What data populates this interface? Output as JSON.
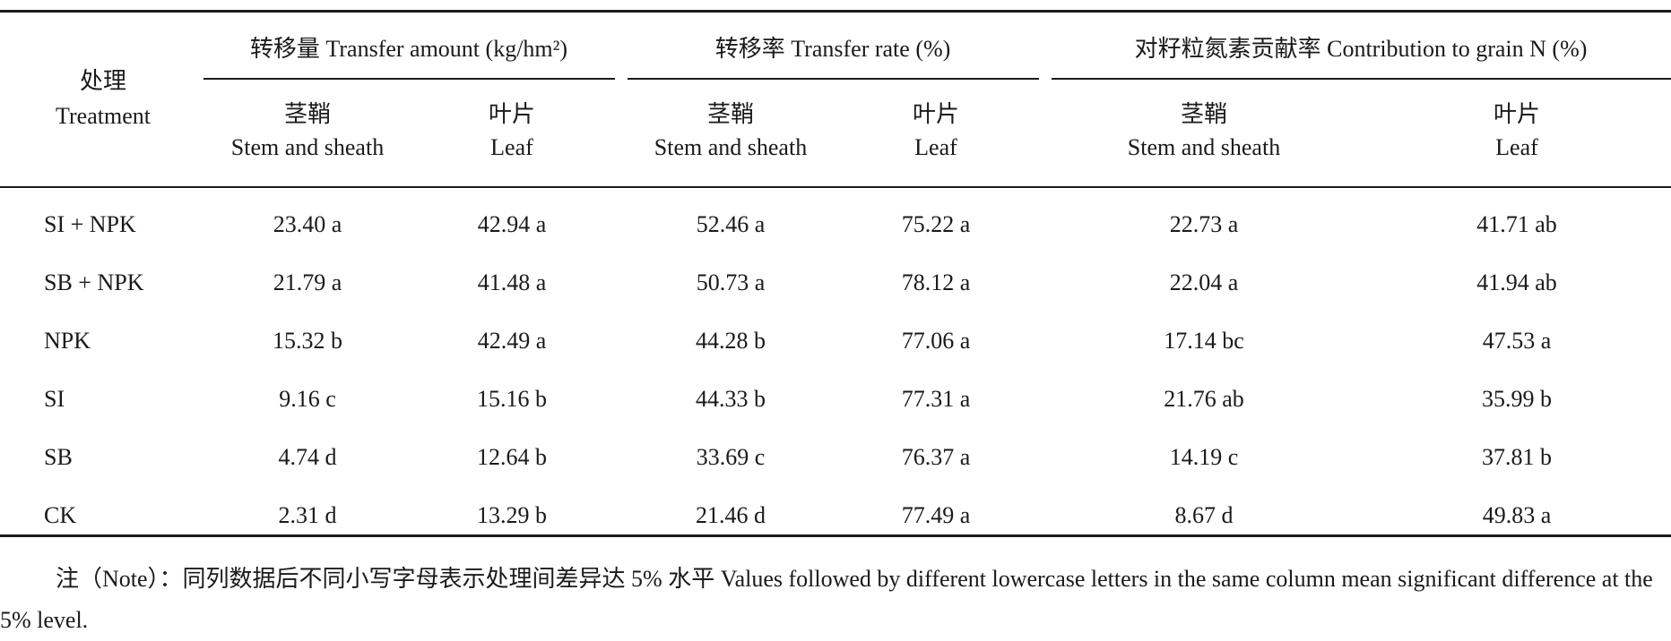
{
  "table": {
    "treatment_header": {
      "zh": "处理",
      "en": "Treatment"
    },
    "groups": [
      {
        "label": "转移量 Transfer amount (kg/hm²)"
      },
      {
        "label": "转移率 Transfer rate (%)"
      },
      {
        "label": "对籽粒氮素贡献率 Contribution to grain N (%)"
      }
    ],
    "subheaders": [
      {
        "zh": "茎鞘",
        "en": "Stem and sheath"
      },
      {
        "zh": "叶片",
        "en": "Leaf"
      },
      {
        "zh": "茎鞘",
        "en": "Stem and sheath"
      },
      {
        "zh": "叶片",
        "en": "Leaf"
      },
      {
        "zh": "茎鞘",
        "en": "Stem and sheath"
      },
      {
        "zh": "叶片",
        "en": "Leaf"
      }
    ],
    "rows": [
      {
        "treatment": "SI + NPK",
        "values": [
          "23.40 a",
          "42.94 a",
          "52.46 a",
          "75.22 a",
          "22.73 a",
          "41.71 ab"
        ]
      },
      {
        "treatment": "SB + NPK",
        "values": [
          "21.79 a",
          "41.48 a",
          "50.73 a",
          "78.12 a",
          "22.04 a",
          "41.94 ab"
        ]
      },
      {
        "treatment": "NPK",
        "values": [
          "15.32 b",
          "42.49 a",
          "44.28 b",
          "77.06 a",
          "17.14 bc",
          "47.53 a"
        ]
      },
      {
        "treatment": "SI",
        "values": [
          "9.16 c",
          "15.16 b",
          "44.33 b",
          "77.31 a",
          "21.76 ab",
          "35.99 b"
        ]
      },
      {
        "treatment": "SB",
        "values": [
          "4.74 d",
          "12.64 b",
          "33.69 c",
          "76.37 a",
          "14.19 c",
          "37.81 b"
        ]
      },
      {
        "treatment": "CK",
        "values": [
          "2.31 d",
          "13.29 b",
          "21.46 d",
          "77.49 a",
          "8.67 d",
          "49.83 a"
        ]
      }
    ]
  },
  "note": "注（Note）：同列数据后不同小写字母表示处理间差异达 5% 水平 Values followed by different lowercase letters in the same column mean significant difference at the 5% level."
}
